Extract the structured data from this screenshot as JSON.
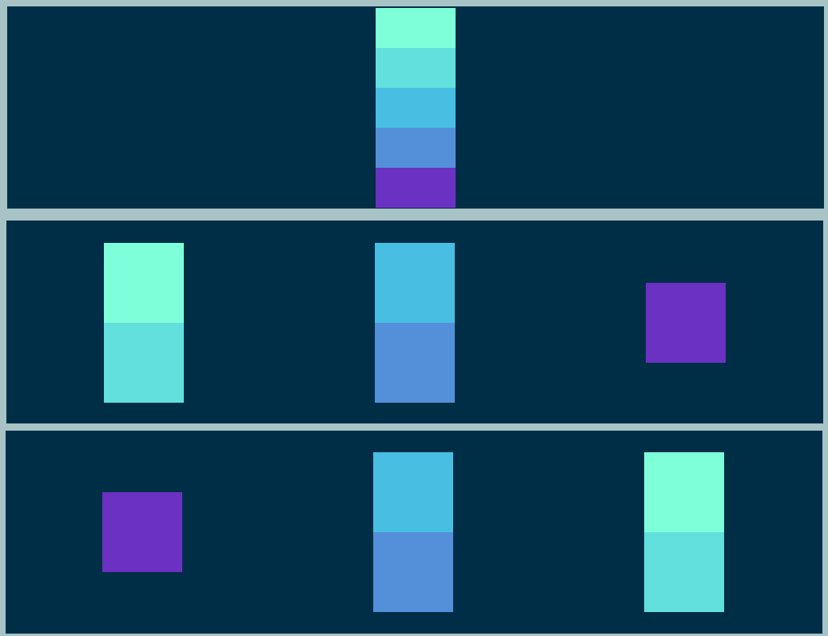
{
  "palette": {
    "background": "#002e47",
    "frame": "#a8c3c5",
    "level_1": "#7fffd9",
    "level_2": "#62e0dd",
    "level_3": "#49bee3",
    "level_4": "#5490da",
    "level_5": "#6b31c3"
  },
  "target_tower": {
    "blocks": [
      "level_1",
      "level_2",
      "level_3",
      "level_4",
      "level_5"
    ]
  },
  "state_a": {
    "stacks": [
      {
        "blocks": [
          "level_1",
          "level_2"
        ]
      },
      {
        "blocks": [
          "level_3",
          "level_4"
        ]
      },
      {
        "blocks": [
          "level_5"
        ]
      }
    ]
  },
  "state_b": {
    "stacks": [
      {
        "blocks": [
          "level_5"
        ]
      },
      {
        "blocks": [
          "level_3",
          "level_4"
        ]
      },
      {
        "blocks": [
          "level_1",
          "level_2"
        ]
      }
    ]
  }
}
